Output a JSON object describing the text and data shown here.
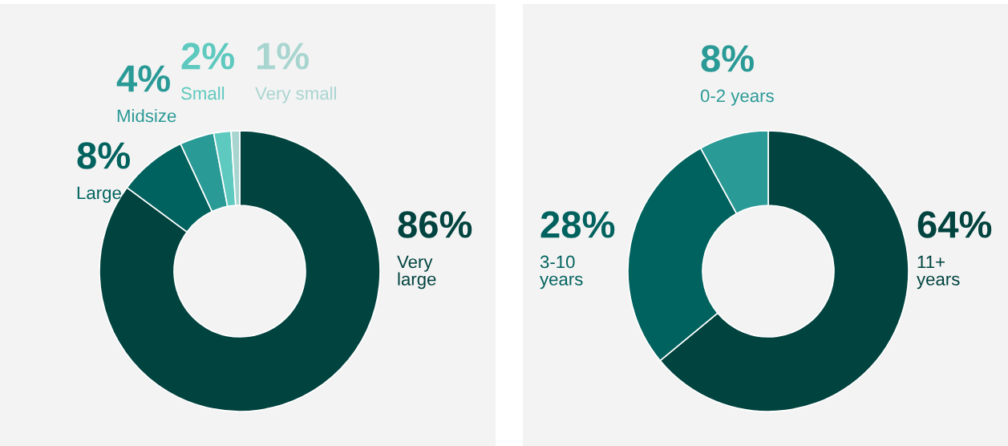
{
  "chart_data": [
    {
      "type": "donut",
      "categories": [
        "Very\nlarge",
        "Large",
        "Midsize",
        "Small",
        "Very small"
      ],
      "values": [
        86,
        8,
        4,
        2,
        1
      ],
      "colors": [
        "#00433f",
        "#00625e",
        "#2a9a96",
        "#5ec9bf",
        "#a8d5d0"
      ],
      "value_labels": [
        "86%",
        "8%",
        "4%",
        "2%",
        "1%"
      ],
      "legend": false
    },
    {
      "type": "donut",
      "categories": [
        "11+\nyears",
        "3-10\nyears",
        "0-2 years"
      ],
      "values": [
        64,
        28,
        8
      ],
      "colors": [
        "#00433f",
        "#00625e",
        "#2a9a96"
      ],
      "value_labels": [
        "64%",
        "28%",
        "8%"
      ],
      "legend": false
    }
  ]
}
